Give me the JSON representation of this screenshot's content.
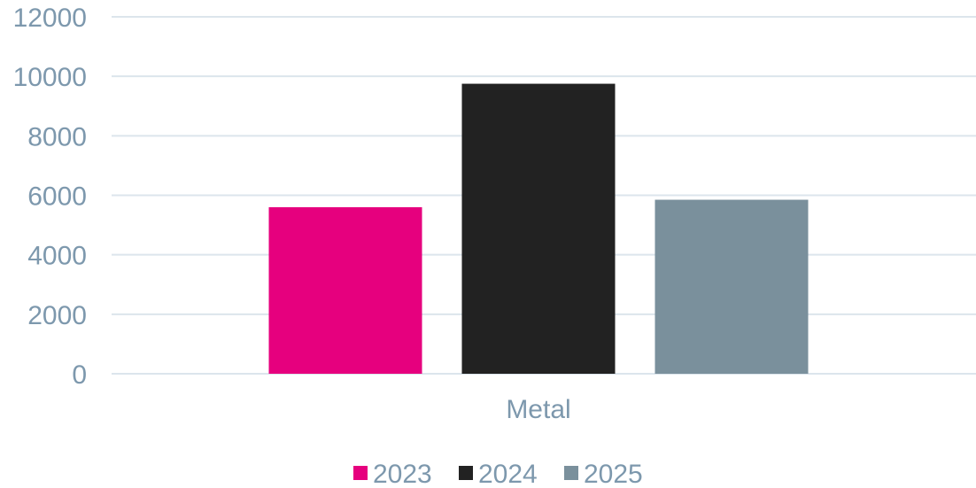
{
  "chart_data": {
    "type": "bar",
    "categories": [
      "Metal"
    ],
    "series": [
      {
        "name": "2023",
        "values": [
          5600
        ],
        "color": "#e6007e"
      },
      {
        "name": "2024",
        "values": [
          9750
        ],
        "color": "#222222"
      },
      {
        "name": "2025",
        "values": [
          5850
        ],
        "color": "#7a909c"
      }
    ],
    "title": "",
    "xlabel": "",
    "ylabel": "",
    "ylim": [
      0,
      12000
    ],
    "yticks": [
      "0",
      "2000",
      "4000",
      "6000",
      "8000",
      "10000",
      "12000"
    ],
    "grid": true,
    "legend_position": "bottom"
  }
}
